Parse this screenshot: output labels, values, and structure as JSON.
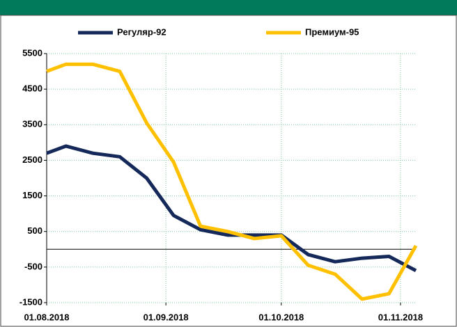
{
  "chart_data": {
    "type": "line",
    "x": [
      "2018-08-01",
      "2018-08-06",
      "2018-08-13",
      "2018-08-20",
      "2018-08-27",
      "2018-09-03",
      "2018-09-10",
      "2018-09-17",
      "2018-09-24",
      "2018-10-01",
      "2018-10-08",
      "2018-10-15",
      "2018-10-22",
      "2018-10-29",
      "2018-11-05"
    ],
    "series": [
      {
        "name": "Регуляр-92",
        "color": "#14285a",
        "values": [
          2700,
          2900,
          2700,
          2600,
          2000,
          950,
          550,
          400,
          400,
          400,
          -150,
          -350,
          -250,
          -200,
          -600
        ]
      },
      {
        "name": "Премиум-95",
        "color": "#ffc000",
        "values": [
          5000,
          5200,
          5200,
          5000,
          3550,
          2450,
          650,
          500,
          300,
          380,
          -450,
          -700,
          -1400,
          -1250,
          100
        ]
      }
    ],
    "xlim": [
      "2018-08-01",
      "2018-11-05"
    ],
    "xticks": [
      {
        "value": "2018-08-01",
        "label": "01.08.2018"
      },
      {
        "value": "2018-09-01",
        "label": "01.09.2018"
      },
      {
        "value": "2018-10-01",
        "label": "01.10.2018"
      },
      {
        "value": "2018-11-01",
        "label": "01.11.2018"
      }
    ],
    "ylim": [
      -1500,
      5500
    ],
    "yticks": [
      -1500,
      -500,
      500,
      1500,
      2500,
      3500,
      4500,
      5500
    ],
    "grid": true,
    "legend": "top"
  }
}
